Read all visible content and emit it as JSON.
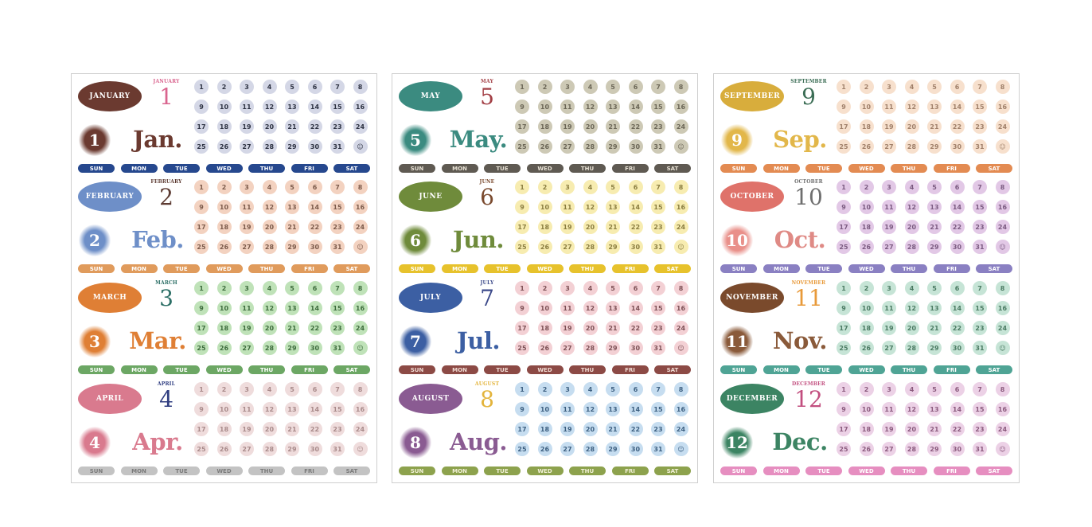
{
  "weekdays": [
    "SUN",
    "MON",
    "TUE",
    "WED",
    "THU",
    "FRI",
    "SAT"
  ],
  "day_numbers": [
    "1",
    "2",
    "3",
    "4",
    "5",
    "6",
    "7",
    "8",
    "9",
    "10",
    "11",
    "12",
    "13",
    "14",
    "15",
    "16",
    "17",
    "18",
    "19",
    "20",
    "21",
    "22",
    "23",
    "24",
    "25",
    "26",
    "27",
    "28",
    "29",
    "30",
    "31",
    "☺"
  ],
  "sheets": [
    {
      "months": [
        {
          "name": "JANUARY",
          "arc": "JANUARY",
          "num": "1",
          "abbr": "Jan.",
          "pill_color": "#6b3a30",
          "num_color": "#d9648e",
          "circle_color": "#6b3a30",
          "abbr_color": "#6b3a30",
          "dot_bg": "#d4d7e6",
          "dot_text": "#2d3242",
          "day_bg": "#26488e",
          "day_text": "#ffffff"
        },
        {
          "name": "FEBRUARY",
          "arc": "FEBRUARY",
          "num": "2",
          "abbr": "Feb.",
          "pill_color": "#6e8fc8",
          "num_color": "#5d3b32",
          "circle_color": "#6e8fc8",
          "abbr_color": "#6e8fc8",
          "dot_bg": "#f3d2c0",
          "dot_text": "#7b5a4a",
          "day_bg": "#e09b5c",
          "day_text": "#ffffff"
        },
        {
          "name": "MARCH",
          "arc": "MARCH",
          "num": "3",
          "abbr": "Mar.",
          "pill_color": "#df7f35",
          "num_color": "#2c6f66",
          "circle_color": "#df7f35",
          "abbr_color": "#df7f35",
          "dot_bg": "#bfe2b8",
          "dot_text": "#3d6b3c",
          "day_bg": "#6ca764",
          "day_text": "#ffffff"
        },
        {
          "name": "APRIL",
          "arc": "APRIL",
          "num": "4",
          "abbr": "Apr.",
          "pill_color": "#d97a8e",
          "num_color": "#2f3d80",
          "circle_color": "#d97a8e",
          "abbr_color": "#d97a8e",
          "dot_bg": "#efdcdc",
          "dot_text": "#a88a8a",
          "day_bg": "#c3c3c3",
          "day_text": "#7a7a7a"
        }
      ]
    },
    {
      "months": [
        {
          "name": "MAY",
          "arc": "MAY",
          "num": "5",
          "abbr": "May.",
          "pill_color": "#3b8b80",
          "num_color": "#a23e44",
          "circle_color": "#3b8b80",
          "abbr_color": "#3b8b80",
          "dot_bg": "#cdc9b5",
          "dot_text": "#6b6656",
          "day_bg": "#5f5a52",
          "day_text": "#e8e2d5"
        },
        {
          "name": "JUNE",
          "arc": "JUNE",
          "num": "6",
          "abbr": "Jun.",
          "pill_color": "#6f8b3b",
          "num_color": "#7a4a2e",
          "circle_color": "#6f8b3b",
          "abbr_color": "#6f8b3b",
          "dot_bg": "#f7ecb0",
          "dot_text": "#8a7d40",
          "day_bg": "#e7c22c",
          "day_text": "#ffffff"
        },
        {
          "name": "JULY",
          "arc": "JULY",
          "num": "7",
          "abbr": "Jul.",
          "pill_color": "#3c5fa3",
          "num_color": "#3c4a8a",
          "circle_color": "#3c5fa3",
          "abbr_color": "#3c5fa3",
          "dot_bg": "#f3d0d4",
          "dot_text": "#7d5055",
          "day_bg": "#8c4a45",
          "day_text": "#f1dcd4"
        },
        {
          "name": "AUGUST",
          "arc": "AUGUST",
          "num": "8",
          "abbr": "Aug.",
          "pill_color": "#8a5b92",
          "num_color": "#e3b43c",
          "circle_color": "#8a5b92",
          "abbr_color": "#8a5b92",
          "dot_bg": "#c6ddf0",
          "dot_text": "#3c5f80",
          "day_bg": "#8da24d",
          "day_text": "#f2f0d8"
        }
      ]
    },
    {
      "months": [
        {
          "name": "SEPTEMBER",
          "arc": "SEPTEMBER",
          "num": "9",
          "abbr": "Sep.",
          "pill_color": "#d8ad3c",
          "num_color": "#3b6d55",
          "circle_color": "#e2b74a",
          "abbr_color": "#e2b74a",
          "dot_bg": "#f7e0cd",
          "dot_text": "#a0806a",
          "day_bg": "#e38b52",
          "day_text": "#ffffff"
        },
        {
          "name": "OCTOBER",
          "arc": "OCTOBER",
          "num": "10",
          "abbr": "Oct.",
          "pill_color": "#df726a",
          "num_color": "#6f6f6f",
          "circle_color": "#e9908a",
          "abbr_color": "#df8a85",
          "dot_bg": "#e2c8e6",
          "dot_text": "#7a5a80",
          "day_bg": "#8a80c2",
          "day_text": "#ffffff"
        },
        {
          "name": "NOVEMBER",
          "arc": "NOVEMBER",
          "num": "11",
          "abbr": "Nov.",
          "pill_color": "#7a4a2c",
          "num_color": "#e89a3a",
          "circle_color": "#8a5a3a",
          "abbr_color": "#8a5a3a",
          "dot_bg": "#c6e4d6",
          "dot_text": "#4a7a62",
          "day_bg": "#4fa495",
          "day_text": "#ffffff"
        },
        {
          "name": "DECEMBER",
          "arc": "DECEMBER",
          "num": "12",
          "abbr": "Dec.",
          "pill_color": "#3c8463",
          "num_color": "#c24f7f",
          "circle_color": "#3c8463",
          "abbr_color": "#3c8463",
          "dot_bg": "#ecd1e6",
          "dot_text": "#8a5a7d",
          "day_bg": "#e68ec0",
          "day_text": "#ffffff"
        }
      ]
    }
  ]
}
